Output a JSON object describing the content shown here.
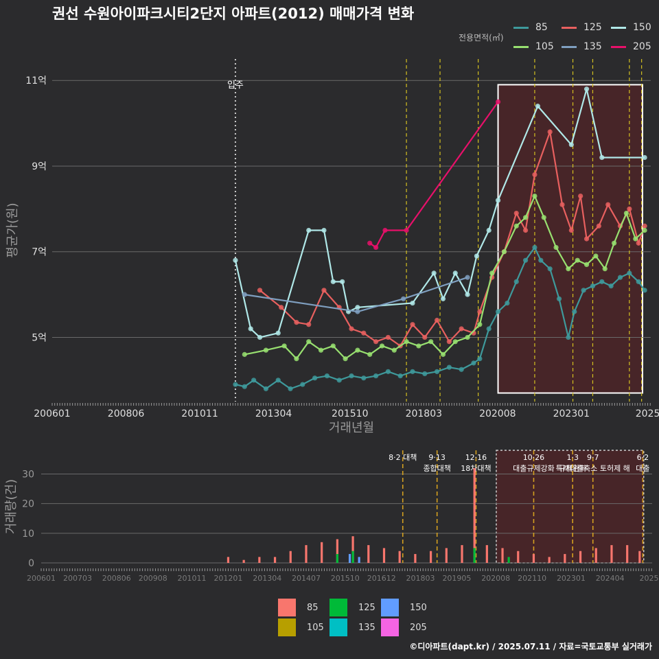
{
  "title": "권선 수원아이파크시티2단지 아파트(2012) 매매가격 변화",
  "footer": "©디아파트(dapt.kr) / 2025.07.11 / 자료=국토교통부 실거래가",
  "legend": {
    "caption": "전용면적(㎡)",
    "items": [
      {
        "label": "85",
        "color": "#3e9a9c",
        "bar_color": "#f8766d"
      },
      {
        "label": "125",
        "color": "#e8605f",
        "bar_color": "#00ba38"
      },
      {
        "label": "150",
        "color": "#b0e8e8",
        "bar_color": "#619cff"
      },
      {
        "label": "105",
        "color": "#98e070",
        "bar_color": "#b79f00"
      },
      {
        "label": "135",
        "color": "#7f9fc0",
        "bar_color": "#00bfc4"
      },
      {
        "label": "205",
        "color": "#e8106a",
        "bar_color": "#f564e3"
      }
    ]
  },
  "chart_data": [
    {
      "type": "line",
      "title": "권선 수원아이파크시티2단지 아파트(2012) 매매가격 변화",
      "xlabel": "거래년월",
      "ylabel": "평균가(원)",
      "ylim": [
        3.5,
        11.5
      ],
      "x_ticks": [
        "200601",
        "200806",
        "201011",
        "201304",
        "201510",
        "201803",
        "202008",
        "202301",
        "2025"
      ],
      "y_ticks": [
        "5억",
        "7억",
        "9억",
        "11억"
      ],
      "annotations": [
        {
          "label": "입주",
          "x": 2012.0
        },
        {
          "label": "",
          "x": 2017.6
        },
        {
          "label": "",
          "x": 2018.7
        },
        {
          "label": "",
          "x": 2019.95
        },
        {
          "label": "",
          "x": 2021.8
        },
        {
          "label": "",
          "x": 2023.05
        },
        {
          "label": "",
          "x": 2023.7
        },
        {
          "label": "",
          "x": 2024.9
        },
        {
          "label": "",
          "x": 2025.3
        }
      ],
      "highlight_range": [
        2020.6,
        2025.33
      ],
      "series": [
        {
          "name": "85",
          "color": "#3e9a9c",
          "points": [
            [
              2012.0,
              3.9
            ],
            [
              2012.3,
              3.85
            ],
            [
              2012.6,
              4.0
            ],
            [
              2013.0,
              3.8
            ],
            [
              2013.4,
              4.0
            ],
            [
              2013.8,
              3.8
            ],
            [
              2014.2,
              3.9
            ],
            [
              2014.6,
              4.05
            ],
            [
              2015.0,
              4.1
            ],
            [
              2015.4,
              4.0
            ],
            [
              2015.8,
              4.1
            ],
            [
              2016.2,
              4.05
            ],
            [
              2016.6,
              4.1
            ],
            [
              2017.0,
              4.2
            ],
            [
              2017.4,
              4.1
            ],
            [
              2017.8,
              4.2
            ],
            [
              2018.2,
              4.15
            ],
            [
              2018.6,
              4.2
            ],
            [
              2019.0,
              4.3
            ],
            [
              2019.4,
              4.25
            ],
            [
              2019.8,
              4.4
            ],
            [
              2020.0,
              4.5
            ],
            [
              2020.3,
              5.2
            ],
            [
              2020.6,
              5.6
            ],
            [
              2020.9,
              5.8
            ],
            [
              2021.2,
              6.3
            ],
            [
              2021.5,
              6.8
            ],
            [
              2021.8,
              7.1
            ],
            [
              2022.0,
              6.8
            ],
            [
              2022.3,
              6.6
            ],
            [
              2022.6,
              5.9
            ],
            [
              2022.9,
              5.0
            ],
            [
              2023.1,
              5.6
            ],
            [
              2023.4,
              6.1
            ],
            [
              2023.7,
              6.2
            ],
            [
              2024.0,
              6.3
            ],
            [
              2024.3,
              6.2
            ],
            [
              2024.6,
              6.4
            ],
            [
              2024.9,
              6.5
            ],
            [
              2025.2,
              6.3
            ],
            [
              2025.4,
              6.1
            ]
          ]
        },
        {
          "name": "125",
          "color": "#e8605f",
          "points": [
            [
              2012.8,
              6.1
            ],
            [
              2013.5,
              5.7
            ],
            [
              2014.0,
              5.35
            ],
            [
              2014.4,
              5.3
            ],
            [
              2014.9,
              6.1
            ],
            [
              2015.4,
              5.7
            ],
            [
              2015.8,
              5.2
            ],
            [
              2016.2,
              5.1
            ],
            [
              2016.6,
              4.9
            ],
            [
              2017.0,
              5.0
            ],
            [
              2017.4,
              4.8
            ],
            [
              2017.8,
              5.3
            ],
            [
              2018.2,
              5.0
            ],
            [
              2018.6,
              5.4
            ],
            [
              2019.0,
              4.9
            ],
            [
              2019.4,
              5.2
            ],
            [
              2019.8,
              5.1
            ],
            [
              2020.0,
              5.6
            ],
            [
              2020.4,
              6.4
            ],
            [
              2020.8,
              7.0
            ],
            [
              2021.2,
              7.9
            ],
            [
              2021.5,
              7.5
            ],
            [
              2021.8,
              8.8
            ],
            [
              2022.3,
              9.8
            ],
            [
              2022.7,
              8.1
            ],
            [
              2023.0,
              7.5
            ],
            [
              2023.3,
              8.3
            ],
            [
              2023.5,
              7.3
            ],
            [
              2023.9,
              7.6
            ],
            [
              2024.2,
              8.1
            ],
            [
              2024.6,
              7.6
            ],
            [
              2024.9,
              8.0
            ],
            [
              2025.2,
              7.2
            ],
            [
              2025.4,
              7.6
            ]
          ]
        },
        {
          "name": "150",
          "color": "#b0e8e8",
          "points": [
            [
              2012.0,
              6.8
            ],
            [
              2012.5,
              5.2
            ],
            [
              2012.8,
              5.0
            ],
            [
              2013.4,
              5.1
            ],
            [
              2014.4,
              7.5
            ],
            [
              2014.9,
              7.5
            ],
            [
              2015.2,
              6.3
            ],
            [
              2015.5,
              6.3
            ],
            [
              2015.7,
              5.6
            ],
            [
              2016.0,
              5.7
            ],
            [
              2017.8,
              5.8
            ],
            [
              2018.5,
              6.5
            ],
            [
              2018.8,
              5.9
            ],
            [
              2019.2,
              6.5
            ],
            [
              2019.6,
              6.0
            ],
            [
              2019.9,
              6.9
            ],
            [
              2020.3,
              7.5
            ],
            [
              2020.6,
              8.2
            ],
            [
              2021.9,
              10.4
            ],
            [
              2023.0,
              9.5
            ],
            [
              2023.5,
              10.8
            ],
            [
              2024.0,
              9.2
            ],
            [
              2025.4,
              9.2
            ]
          ]
        },
        {
          "name": "105",
          "color": "#98e070",
          "points": [
            [
              2012.3,
              4.6
            ],
            [
              2013.0,
              4.7
            ],
            [
              2013.6,
              4.8
            ],
            [
              2014.0,
              4.5
            ],
            [
              2014.4,
              4.9
            ],
            [
              2014.8,
              4.7
            ],
            [
              2015.2,
              4.8
            ],
            [
              2015.6,
              4.5
            ],
            [
              2016.0,
              4.7
            ],
            [
              2016.4,
              4.6
            ],
            [
              2016.8,
              4.8
            ],
            [
              2017.2,
              4.7
            ],
            [
              2017.6,
              4.9
            ],
            [
              2018.0,
              4.8
            ],
            [
              2018.4,
              4.9
            ],
            [
              2018.8,
              4.6
            ],
            [
              2019.2,
              4.9
            ],
            [
              2019.6,
              5.0
            ],
            [
              2020.0,
              5.3
            ],
            [
              2020.4,
              6.5
            ],
            [
              2020.8,
              7.0
            ],
            [
              2021.2,
              7.6
            ],
            [
              2021.5,
              7.8
            ],
            [
              2021.8,
              8.3
            ],
            [
              2022.1,
              7.8
            ],
            [
              2022.5,
              7.1
            ],
            [
              2022.9,
              6.6
            ],
            [
              2023.2,
              6.8
            ],
            [
              2023.5,
              6.7
            ],
            [
              2023.8,
              6.9
            ],
            [
              2024.1,
              6.6
            ],
            [
              2024.4,
              7.2
            ],
            [
              2024.8,
              7.9
            ],
            [
              2025.1,
              7.3
            ],
            [
              2025.4,
              7.5
            ]
          ]
        },
        {
          "name": "135",
          "color": "#7f9fc0",
          "points": [
            [
              2012.3,
              6.0
            ],
            [
              2016.0,
              5.6
            ],
            [
              2017.5,
              5.9
            ],
            [
              2019.6,
              6.4
            ]
          ]
        },
        {
          "name": "205",
          "color": "#e8106a",
          "points": [
            [
              2016.4,
              7.2
            ],
            [
              2016.6,
              7.1
            ],
            [
              2016.9,
              7.5
            ],
            [
              2017.6,
              7.5
            ],
            [
              2020.6,
              10.5
            ]
          ]
        }
      ]
    },
    {
      "type": "bar",
      "xlabel": "",
      "ylabel": "거래량(건)",
      "ylim": [
        0,
        38
      ],
      "x_ticks": [
        "200601",
        "200703",
        "200806",
        "200908",
        "201011",
        "201201",
        "201304",
        "201407",
        "201510",
        "201612",
        "201803",
        "201905",
        "202008",
        "202110",
        "202301",
        "202404",
        "2025"
      ],
      "y_ticks": [
        "0",
        "10",
        "20",
        "30"
      ],
      "highlight_range": [
        2020.6,
        2025.33
      ],
      "annotations": [
        {
          "label": "8·2 대책",
          "x": 2017.6
        },
        {
          "label": "9·13",
          "x": 2018.7
        },
        {
          "label": "종합대책",
          "x": 2018.7
        },
        {
          "label": "12·16",
          "x": 2019.95
        },
        {
          "label": "18차대책",
          "x": 2019.95
        },
        {
          "label": "10·26",
          "x": 2021.8
        },
        {
          "label": "대출규제강화",
          "x": 2021.8
        },
        {
          "label": "1·3",
          "x": 2023.05
        },
        {
          "label": "규제완화",
          "x": 2023.05
        },
        {
          "label": "9·7",
          "x": 2023.7
        },
        {
          "label": "특례대출축소 토허제 해",
          "x": 2023.7
        },
        {
          "label": "6·2",
          "x": 2025.3
        },
        {
          "label": "대출",
          "x": 2025.3
        }
      ],
      "series": [
        {
          "name": "85",
          "values_by_period": [
            [
              2012.0,
              2
            ],
            [
              2012.5,
              1
            ],
            [
              2013.0,
              2
            ],
            [
              2013.5,
              2
            ],
            [
              2014.0,
              4
            ],
            [
              2014.5,
              6
            ],
            [
              2015.0,
              7
            ],
            [
              2015.5,
              8
            ],
            [
              2016.0,
              9
            ],
            [
              2016.5,
              6
            ],
            [
              2017.0,
              5
            ],
            [
              2017.5,
              4
            ],
            [
              2018.0,
              3
            ],
            [
              2018.5,
              4
            ],
            [
              2019.0,
              5
            ],
            [
              2019.5,
              6
            ],
            [
              2019.9,
              32
            ],
            [
              2020.3,
              6
            ],
            [
              2020.8,
              5
            ],
            [
              2021.3,
              4
            ],
            [
              2021.8,
              3
            ],
            [
              2022.3,
              2
            ],
            [
              2022.8,
              3
            ],
            [
              2023.3,
              4
            ],
            [
              2023.8,
              5
            ],
            [
              2024.3,
              6
            ],
            [
              2024.8,
              6
            ],
            [
              2025.2,
              4
            ]
          ]
        },
        {
          "name": "125",
          "values_by_period": [
            [
              2015.5,
              3
            ],
            [
              2016.0,
              4
            ],
            [
              2019.9,
              5
            ],
            [
              2021.0,
              2
            ]
          ]
        },
        {
          "name": "150",
          "values_by_period": [
            [
              2015.9,
              3
            ],
            [
              2016.2,
              2
            ]
          ]
        }
      ]
    }
  ]
}
